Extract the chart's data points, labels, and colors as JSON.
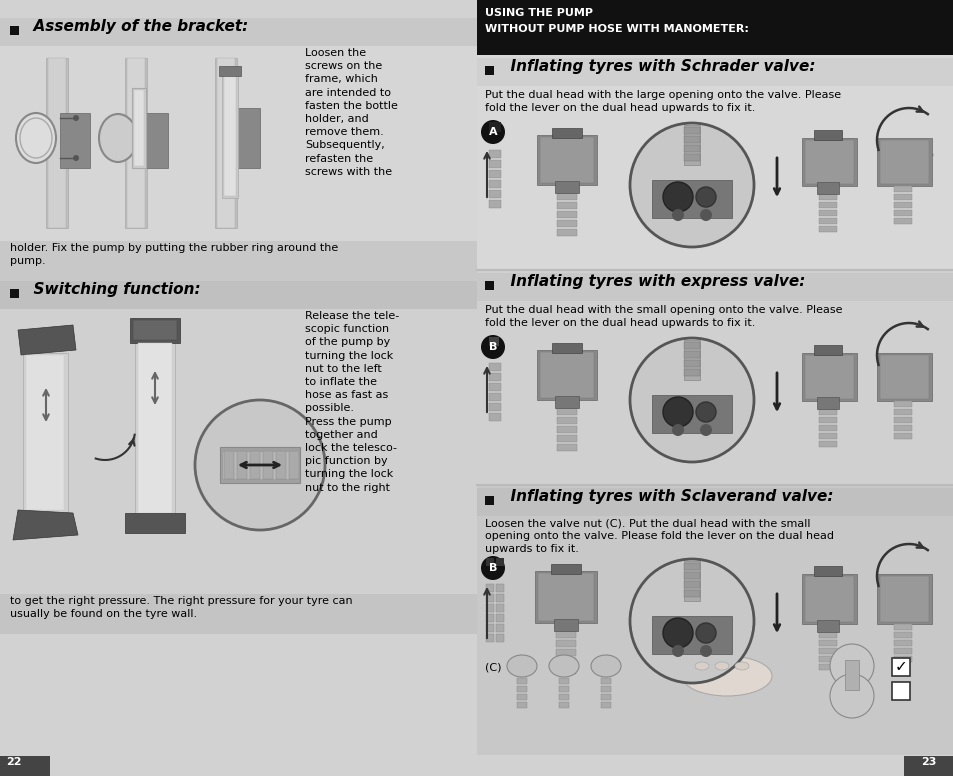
{
  "page_bg": "#cccccc",
  "left_bg": "#d0d0d0",
  "right_bg": "#d0d0d0",
  "header_bg": "#111111",
  "left_page_num": "22",
  "right_page_num": "23",
  "header_line1": "USING THE PUMP",
  "header_line2": "WITHOUT PUMP HOSE WITH MANOMETER:",
  "left_section1_title": "  Assembly of the bracket:",
  "left_section1_body1": "Loosen the\nscrews on the\nframe, which\nare intended to\nfasten the bottle\nholder, and\nremove them.\nSubsequently,\nrefasten the\nscrews with the",
  "left_section1_body2": "holder. Fix the pump by putting the rubber ring around the\npump.",
  "left_section2_title": "  Switching function:",
  "left_section2_body1": "Release the tele-\nscopic function\nof the pump by\nturning the lock\nnut to the left\nto inflate the\nhose as fast as\npossible.\nPress the pump\ntogether and\nlock the telesco-\npic function by\nturning the lock\nnut to the right",
  "left_section2_body2": "to get the right pressure. The right pressure for your tyre can\nusually be found on the tyre wall.",
  "right_section1_title": "  Inflating tyres with Schrader valve:",
  "right_section1_body": "Put the dual head with the large opening onto the valve. Please\nfold the lever on the dual head upwards to fix it.",
  "right_section2_title": "  Inflating tyres with express valve:",
  "right_section2_body": "Put the dual head with the small opening onto the valve. Please\nfold the lever on the dual head upwards to fix it.",
  "right_section3_title": "  Inflating tyres with Sclaverand valve:",
  "right_section3_body": "Loosen the valve nut (C). Put the dual head with the small\nopening onto the valve. Please fold the lever on the dual head\nupwards to fix it."
}
